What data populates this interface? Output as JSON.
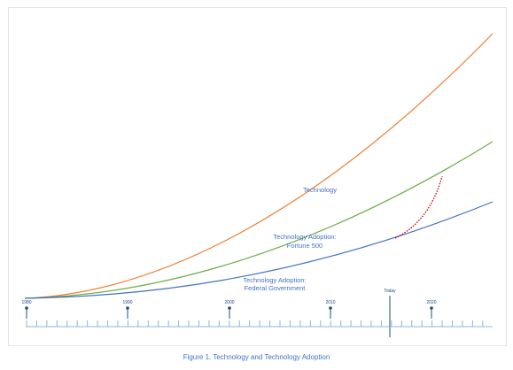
{
  "curves": [
    {
      "id": "technology",
      "label_lines": [
        "Technology"
      ],
      "color": "#ed7d31"
    },
    {
      "id": "fortune500",
      "label_lines": [
        "Technology Adoption:",
        "Fortune 500"
      ],
      "color": "#70ad47"
    },
    {
      "id": "federal",
      "label_lines": [
        "Technology Adoption:",
        "Federal Government"
      ],
      "color": "#4472c4"
    }
  ],
  "gap_curve": {
    "color": "#c00000",
    "style": "dotted"
  },
  "timeline": {
    "years": [
      "1980",
      "1990",
      "2000",
      "2010",
      "2020"
    ],
    "today_label": "Today",
    "color": "#1f4e79",
    "tick_color": "#8fb4d9"
  },
  "caption": "Figure 1. Technology and Technology Adoption"
}
